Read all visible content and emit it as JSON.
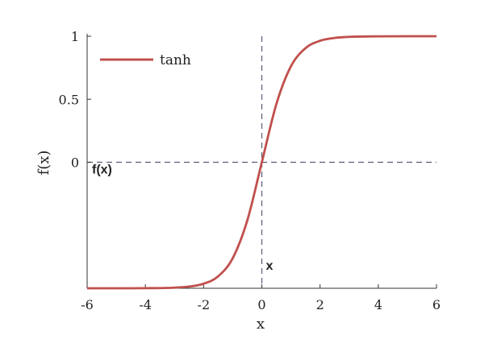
{
  "chart_data": {
    "type": "line",
    "title": "",
    "xlabel": "x",
    "ylabel": "f(x)",
    "xlim": [
      -6,
      6
    ],
    "ylim": [
      -1,
      1
    ],
    "xticks": [
      "-6",
      "-4",
      "-2",
      "0",
      "2",
      "4",
      "6"
    ],
    "yticks": [
      "0",
      "0.5",
      "1"
    ],
    "legend": {
      "position": "top-left",
      "entries": [
        "tanh"
      ]
    },
    "series": [
      {
        "name": "tanh",
        "color": "#c0504d",
        "x": [
          -6,
          -5,
          -4,
          -3,
          -2.5,
          -2,
          -1.5,
          -1,
          -0.5,
          0,
          0.5,
          1,
          1.5,
          2,
          2.5,
          3,
          4,
          5,
          6
        ],
        "y": [
          -1.0,
          -0.9999,
          -0.9993,
          -0.9951,
          -0.9866,
          -0.964,
          -0.9051,
          -0.7616,
          -0.4621,
          0,
          0.4621,
          0.7616,
          0.9051,
          0.964,
          0.9866,
          0.9951,
          0.9993,
          0.9999,
          1.0
        ]
      }
    ],
    "reference_lines": [
      {
        "orientation": "vertical",
        "at": 0,
        "label": "x"
      },
      {
        "orientation": "horizontal",
        "at": 0,
        "label": "f(x)"
      }
    ],
    "grid": false
  }
}
